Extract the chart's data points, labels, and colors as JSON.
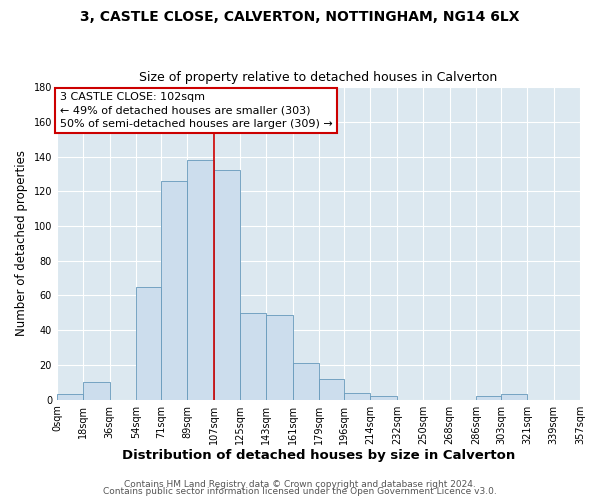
{
  "title": "3, CASTLE CLOSE, CALVERTON, NOTTINGHAM, NG14 6LX",
  "subtitle": "Size of property relative to detached houses in Calverton",
  "xlabel": "Distribution of detached houses by size in Calverton",
  "ylabel": "Number of detached properties",
  "bar_color": "#ccdded",
  "bar_edge_color": "#6699bb",
  "background_color": "#dce8f0",
  "fig_background": "#ffffff",
  "bin_edges": [
    0,
    18,
    36,
    54,
    71,
    89,
    107,
    125,
    143,
    161,
    179,
    196,
    214,
    232,
    250,
    268,
    286,
    303,
    321,
    339,
    357
  ],
  "counts": [
    3,
    10,
    0,
    65,
    126,
    138,
    132,
    50,
    49,
    21,
    12,
    4,
    2,
    0,
    0,
    0,
    2,
    3,
    0,
    0
  ],
  "tick_labels": [
    "0sqm",
    "18sqm",
    "36sqm",
    "54sqm",
    "71sqm",
    "89sqm",
    "107sqm",
    "125sqm",
    "143sqm",
    "161sqm",
    "179sqm",
    "196sqm",
    "214sqm",
    "232sqm",
    "250sqm",
    "268sqm",
    "286sqm",
    "303sqm",
    "321sqm",
    "339sqm",
    "357sqm"
  ],
  "vline_x": 107,
  "vline_color": "#cc0000",
  "annotation_line1": "3 CASTLE CLOSE: 102sqm",
  "annotation_line2": "← 49% of detached houses are smaller (303)",
  "annotation_line3": "50% of semi-detached houses are larger (309) →",
  "annotation_box_color": "#ffffff",
  "annotation_box_edge_color": "#cc0000",
  "ylim": [
    0,
    180
  ],
  "yticks": [
    0,
    20,
    40,
    60,
    80,
    100,
    120,
    140,
    160,
    180
  ],
  "footer_line1": "Contains HM Land Registry data © Crown copyright and database right 2024.",
  "footer_line2": "Contains public sector information licensed under the Open Government Licence v3.0.",
  "title_fontsize": 10,
  "subtitle_fontsize": 9,
  "xlabel_fontsize": 9.5,
  "ylabel_fontsize": 8.5,
  "tick_fontsize": 7,
  "annotation_fontsize": 8,
  "footer_fontsize": 6.5
}
